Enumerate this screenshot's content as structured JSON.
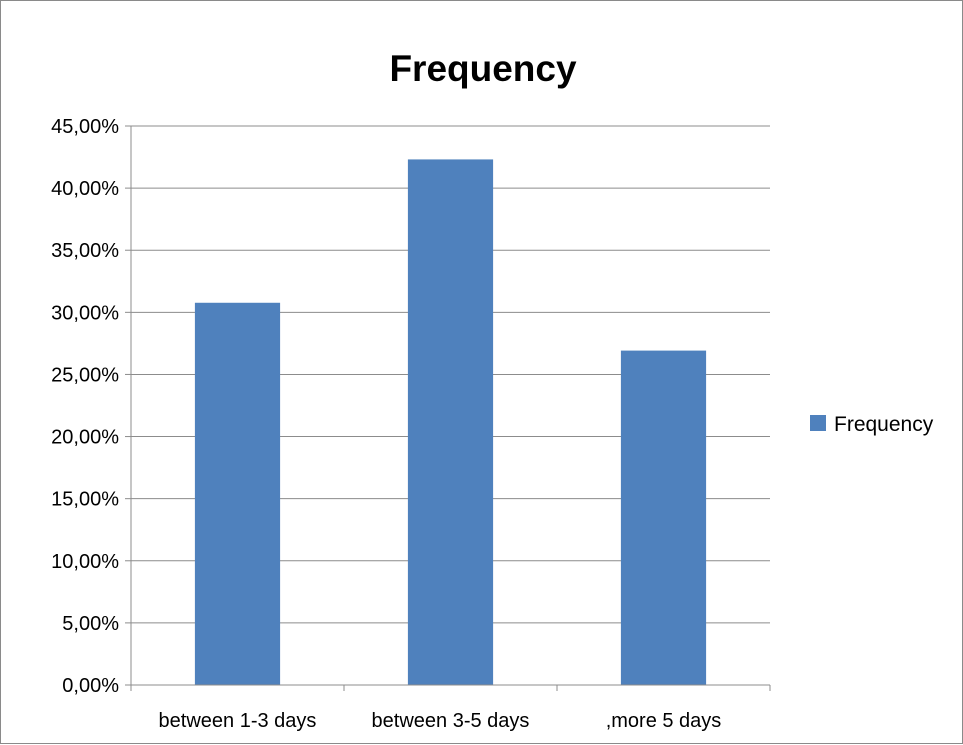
{
  "chart_data": {
    "type": "bar",
    "title": "Frequency",
    "categories": [
      "between 1-3 days",
      "between 3-5 days",
      ",more 5 days"
    ],
    "series": [
      {
        "name": "Frequency",
        "values": [
          30.77,
          42.31,
          26.92
        ],
        "color": "#4f81bd"
      }
    ],
    "ylim": [
      0,
      45
    ],
    "y_ticks": [
      0,
      5,
      10,
      15,
      20,
      25,
      30,
      35,
      40,
      45
    ],
    "y_tick_labels": [
      "0,00%",
      "5,00%",
      "10,00%",
      "15,00%",
      "20,00%",
      "25,00%",
      "30,00%",
      "35,00%",
      "40,00%",
      "45,00%"
    ],
    "xlabel": "",
    "ylabel": "",
    "grid": true,
    "gridline_color": "#8c8c8c",
    "legend_position": "right"
  }
}
